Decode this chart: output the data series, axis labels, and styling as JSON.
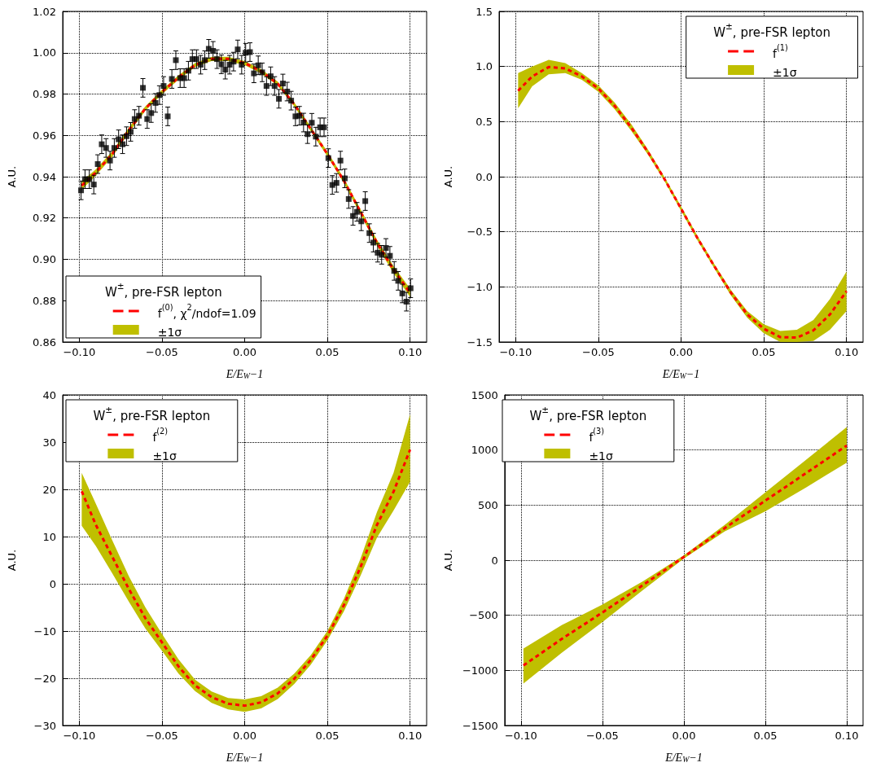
{
  "chart_data": [
    {
      "type": "line",
      "legend_title": "W$^{±}$, pre-FSR lepton",
      "xlabel": "E/E$_{W}$−1",
      "ylabel": "A.U.",
      "xlim": [
        -0.11,
        0.11
      ],
      "ylim": [
        0.86,
        1.02
      ],
      "xticks": [
        {
          "value": -0.1,
          "label": "−0.10"
        },
        {
          "value": -0.05,
          "label": "−0.05"
        },
        {
          "value": 0,
          "label": "0.00"
        },
        {
          "value": 0.05,
          "label": "0.05"
        },
        {
          "value": 0.1,
          "label": "0.10"
        }
      ],
      "yticks": [
        {
          "value": 0.86,
          "label": "0.86"
        },
        {
          "value": 0.88,
          "label": "0.88"
        },
        {
          "value": 0.9,
          "label": "0.90"
        },
        {
          "value": 0.92,
          "label": "0.92"
        },
        {
          "value": 0.94,
          "label": "0.94"
        },
        {
          "value": 0.96,
          "label": "0.96"
        },
        {
          "value": 0.98,
          "label": "0.98"
        },
        {
          "value": 1,
          "label": "1.00"
        },
        {
          "value": 1.02,
          "label": "1.02"
        }
      ],
      "grid": true,
      "legend": "bottom left",
      "series": [
        {
          "name": "±1σ",
          "type": "area",
          "color": "#bfbf00"
        },
        {
          "name": "f$^{(0)}$, χ$^{2}$/ndof=1.09",
          "type": "line",
          "color": "#ff0000",
          "line_style": "dashed",
          "marker": "none",
          "x": [
            -0.0985,
            -0.09,
            -0.08,
            -0.07,
            -0.06,
            -0.05,
            -0.04,
            -0.03,
            -0.02,
            -0.01,
            0,
            0.01,
            0.02,
            0.03,
            0.04,
            0.05,
            0.06,
            0.07,
            0.08,
            0.09,
            0.1
          ],
          "values": [
            0.9357,
            0.942,
            0.951,
            0.9625,
            0.973,
            0.981,
            0.988,
            0.994,
            0.997,
            0.997,
            0.995,
            0.991,
            0.985,
            0.975,
            0.963,
            0.951,
            0.938,
            0.923,
            0.908,
            0.895,
            0.8838
          ],
          "lower": [
            0.9337,
            0.9405,
            0.9497,
            0.9613,
            0.9719,
            0.9799,
            0.9869,
            0.993,
            0.996,
            0.996,
            0.994,
            0.99,
            0.984,
            0.974,
            0.9619,
            0.9499,
            0.9368,
            0.9217,
            0.9065,
            0.8933,
            0.8818
          ],
          "upper": [
            0.9377,
            0.9435,
            0.9523,
            0.9637,
            0.9741,
            0.9821,
            0.9891,
            0.995,
            0.998,
            0.998,
            0.996,
            0.992,
            0.986,
            0.976,
            0.9641,
            0.9521,
            0.9392,
            0.9243,
            0.9095,
            0.8967,
            0.8858
          ]
        },
        {
          "type": "scatter",
          "color": "#000000",
          "marker": "square",
          "x": [
            -0.0989,
            -0.0965,
            -0.0939,
            -0.0912,
            -0.0888,
            -0.0864,
            -0.0838,
            -0.0814,
            -0.0788,
            -0.0762,
            -0.0738,
            -0.0714,
            -0.0689,
            -0.0665,
            -0.0639,
            -0.0615,
            -0.0589,
            -0.0565,
            -0.0539,
            -0.0515,
            -0.049,
            -0.0465,
            -0.044,
            -0.0416,
            -0.039,
            -0.0366,
            -0.034,
            -0.0316,
            -0.0291,
            -0.0266,
            -0.0241,
            -0.0217,
            -0.0191,
            -0.0167,
            -0.0141,
            -0.0117,
            -0.0091,
            -0.0067,
            -0.0042,
            -0.0018,
            0.0006,
            0.0032,
            0.0056,
            0.0082,
            0.0106,
            0.0132,
            0.0157,
            0.0181,
            0.0207,
            0.0231,
            0.0257,
            0.0281,
            0.0307,
            0.0331,
            0.0356,
            0.038,
            0.0406,
            0.043,
            0.0456,
            0.048,
            0.0506,
            0.053,
            0.0555,
            0.0579,
            0.0605,
            0.0629,
            0.0655,
            0.0679,
            0.0705,
            0.0729,
            0.0754,
            0.0778,
            0.0804,
            0.0828,
            0.0854,
            0.0878,
            0.0904,
            0.0928,
            0.0953,
            0.0978,
            0.1003
          ],
          "values": [
            0.9334,
            0.9388,
            0.9388,
            0.9362,
            0.9461,
            0.9557,
            0.9539,
            0.9478,
            0.9539,
            0.9581,
            0.9557,
            0.9596,
            0.9617,
            0.9679,
            0.9695,
            0.983,
            0.9679,
            0.9708,
            0.9757,
            0.9795,
            0.9839,
            0.9692,
            0.9873,
            0.9964,
            0.9877,
            0.9877,
            0.9913,
            0.9969,
            0.9969,
            0.9942,
            0.9964,
            1.0019,
            1.0009,
            0.9969,
            0.9944,
            0.9918,
            0.9942,
            0.9957,
            1.0016,
            0.9942,
            1.0,
            1.0003,
            0.99,
            0.9939,
            0.9905,
            0.9839,
            0.9886,
            0.9839,
            0.9777,
            0.9851,
            0.9812,
            0.9768,
            0.9692,
            0.9695,
            0.9662,
            0.9606,
            0.9661,
            0.9594,
            0.9639,
            0.9639,
            0.949,
            0.936,
            0.937,
            0.9478,
            0.9392,
            0.9292,
            0.921,
            0.923,
            0.9184,
            0.9282,
            0.9127,
            0.9081,
            0.9032,
            0.9022,
            0.9055,
            0.9017,
            0.8944,
            0.8896,
            0.8835,
            0.8795,
            0.886
          ],
          "errors": [
            0.0045,
            0.0045,
            0.0045,
            0.0045,
            0.0045,
            0.0045,
            0.0045,
            0.0045,
            0.0045,
            0.0045,
            0.0045,
            0.0045,
            0.0045,
            0.0045,
            0.0045,
            0.0045,
            0.0045,
            0.0045,
            0.0045,
            0.0045,
            0.0045,
            0.0045,
            0.0045,
            0.0045,
            0.0045,
            0.0045,
            0.0045,
            0.0045,
            0.0045,
            0.0045,
            0.0045,
            0.0045,
            0.0045,
            0.0045,
            0.0045,
            0.0045,
            0.0045,
            0.0045,
            0.0045,
            0.0045,
            0.0045,
            0.0045,
            0.0045,
            0.0045,
            0.0045,
            0.0045,
            0.0045,
            0.0045,
            0.0045,
            0.0045,
            0.0045,
            0.0045,
            0.0045,
            0.0045,
            0.0045,
            0.0045,
            0.0045,
            0.0045,
            0.0045,
            0.0045,
            0.0045,
            0.0045,
            0.0045,
            0.0045,
            0.0045,
            0.0045,
            0.0045,
            0.0045,
            0.0045,
            0.0045,
            0.0045,
            0.0045,
            0.0045,
            0.0045,
            0.0045,
            0.0045,
            0.0045,
            0.0045,
            0.0045,
            0.0045,
            0.0045
          ]
        }
      ]
    },
    {
      "type": "line",
      "legend_title": "W$^{±}$, pre-FSR lepton",
      "xlabel": "E/E$_{W}$−1",
      "ylabel": "A.U.",
      "xlim": [
        -0.11,
        0.11
      ],
      "ylim": [
        -1.5,
        1.5
      ],
      "xticks": [
        {
          "value": -0.1,
          "label": "−0.10"
        },
        {
          "value": -0.05,
          "label": "−0.05"
        },
        {
          "value": 0,
          "label": "0.00"
        },
        {
          "value": 0.05,
          "label": "0.05"
        },
        {
          "value": 0.1,
          "label": "0.10"
        }
      ],
      "yticks": [
        {
          "value": -1.5,
          "label": "−1.5"
        },
        {
          "value": -1,
          "label": "−1.0"
        },
        {
          "value": -0.5,
          "label": "−0.5"
        },
        {
          "value": 0,
          "label": "0.0"
        },
        {
          "value": 0.5,
          "label": "0.5"
        },
        {
          "value": 1,
          "label": "1.0"
        },
        {
          "value": 1.5,
          "label": "1.5"
        }
      ],
      "grid": true,
      "legend": "top right",
      "series": [
        {
          "name": "±1σ",
          "type": "area",
          "color": "#bfbf00"
        },
        {
          "name": "f$^{(1)}$",
          "type": "line",
          "color": "#ff0000",
          "line_style": "dashed",
          "marker": "none",
          "x": [
            -0.0985,
            -0.09,
            -0.08,
            -0.07,
            -0.06,
            -0.05,
            -0.04,
            -0.03,
            -0.02,
            -0.01,
            0,
            0.01,
            0.02,
            0.03,
            0.04,
            0.05,
            0.06,
            0.07,
            0.08,
            0.09,
            0.1
          ],
          "values": [
            0.78,
            0.91,
            0.995,
            0.983,
            0.91,
            0.8,
            0.64,
            0.444,
            0.223,
            -0.022,
            -0.29,
            -0.56,
            -0.81,
            -1.05,
            -1.25,
            -1.38,
            -1.456,
            -1.46,
            -1.395,
            -1.25,
            -1.04
          ],
          "lower": [
            0.62,
            0.82,
            0.93,
            0.94,
            0.88,
            0.77,
            0.61,
            0.414,
            0.2,
            -0.04,
            -0.31,
            -0.58,
            -0.83,
            -1.075,
            -1.28,
            -1.42,
            -1.5,
            -1.5,
            -1.49,
            -1.39,
            -1.22
          ],
          "upper": [
            0.94,
            1.0,
            1.06,
            1.03,
            0.94,
            0.83,
            0.67,
            0.474,
            0.246,
            -0.004,
            -0.27,
            -0.54,
            -0.79,
            -1.025,
            -1.22,
            -1.34,
            -1.4,
            -1.39,
            -1.3,
            -1.11,
            -0.86
          ]
        }
      ]
    },
    {
      "type": "line",
      "legend_title": "W$^{±}$, pre-FSR lepton",
      "xlabel": "E/E$_{W}$−1",
      "ylabel": "A.U.",
      "xlim": [
        -0.11,
        0.11
      ],
      "ylim": [
        -30,
        40
      ],
      "xticks": [
        {
          "value": -0.1,
          "label": "−0.10"
        },
        {
          "value": -0.05,
          "label": "−0.05"
        },
        {
          "value": 0,
          "label": "0.00"
        },
        {
          "value": 0.05,
          "label": "0.05"
        },
        {
          "value": 0.1,
          "label": "0.10"
        }
      ],
      "yticks": [
        {
          "value": -30,
          "label": "−30"
        },
        {
          "value": -20,
          "label": "−20"
        },
        {
          "value": -10,
          "label": "−10"
        },
        {
          "value": 0,
          "label": "0"
        },
        {
          "value": 10,
          "label": "10"
        },
        {
          "value": 20,
          "label": "20"
        },
        {
          "value": 30,
          "label": "30"
        },
        {
          "value": 40,
          "label": "40"
        }
      ],
      "grid": true,
      "legend": "top left",
      "series": [
        {
          "name": "±1σ",
          "type": "area",
          "color": "#bfbf00"
        },
        {
          "name": "f$^{(2)}$",
          "type": "line",
          "color": "#ff0000",
          "line_style": "dashed",
          "marker": "none",
          "x": [
            -0.0985,
            -0.09,
            -0.08,
            -0.07,
            -0.06,
            -0.05,
            -0.04,
            -0.03,
            -0.02,
            -0.01,
            0,
            0.01,
            0.02,
            0.03,
            0.04,
            0.05,
            0.06,
            0.07,
            0.08,
            0.09,
            0.1
          ],
          "values": [
            19.6,
            12.5,
            5.7,
            -1.1,
            -7.3,
            -12.4,
            -17.5,
            -21.5,
            -24.0,
            -25.4,
            -25.8,
            -25.1,
            -23.2,
            -20.1,
            -16.1,
            -11.0,
            -4.5,
            3.5,
            12.5,
            19.5,
            28.4
          ],
          "lower": [
            12.3,
            8.0,
            2.2,
            -3.8,
            -9.5,
            -14.2,
            -19.0,
            -22.7,
            -25.2,
            -26.6,
            -27.1,
            -26.4,
            -24.4,
            -21.2,
            -17.1,
            -12.0,
            -5.8,
            1.7,
            9.8,
            15.5,
            21.6
          ],
          "upper": [
            23.5,
            17.0,
            9.2,
            1.6,
            -5.0,
            -10.6,
            -16.0,
            -20.3,
            -22.8,
            -24.2,
            -24.5,
            -23.8,
            -22.0,
            -19.0,
            -15.1,
            -10.0,
            -3.2,
            5.3,
            15.2,
            23.5,
            35.9
          ]
        }
      ]
    },
    {
      "type": "line",
      "legend_title": "W$^{±}$, pre-FSR lepton",
      "xlabel": "E/E$_{W}$−1",
      "ylabel": "A.U.",
      "xlim": [
        -0.11,
        0.11
      ],
      "ylim": [
        -1500,
        1500
      ],
      "xticks": [
        {
          "value": -0.1,
          "label": "−0.10"
        },
        {
          "value": -0.05,
          "label": "−0.05"
        },
        {
          "value": 0,
          "label": "0.00"
        },
        {
          "value": 0.05,
          "label": "0.05"
        },
        {
          "value": 0.1,
          "label": "0.10"
        }
      ],
      "yticks": [
        {
          "value": -1500,
          "label": "−1500"
        },
        {
          "value": -1000,
          "label": "−1000"
        },
        {
          "value": -500,
          "label": "−500"
        },
        {
          "value": 0,
          "label": "0"
        },
        {
          "value": 500,
          "label": "500"
        },
        {
          "value": 1000,
          "label": "1000"
        },
        {
          "value": 1500,
          "label": "1500"
        }
      ],
      "grid": true,
      "legend": "top left",
      "series": [
        {
          "name": "±1σ",
          "type": "area",
          "color": "#bfbf00"
        },
        {
          "name": "f$^{(3)}$",
          "type": "line",
          "color": "#ff0000",
          "line_style": "dashed",
          "marker": "none",
          "x": [
            -0.0985,
            -0.075,
            -0.05,
            -0.025,
            0,
            0.025,
            0.05,
            0.075,
            0.1
          ],
          "values": [
            -955,
            -715,
            -475,
            -225,
            30,
            290,
            540,
            790,
            1040
          ],
          "lower": [
            -1120,
            -840,
            -561,
            -270,
            15,
            260,
            444,
            660,
            885
          ],
          "upper": [
            -801,
            -590,
            -402,
            -190,
            45,
            320,
            615,
            910,
            1208
          ]
        }
      ]
    }
  ]
}
